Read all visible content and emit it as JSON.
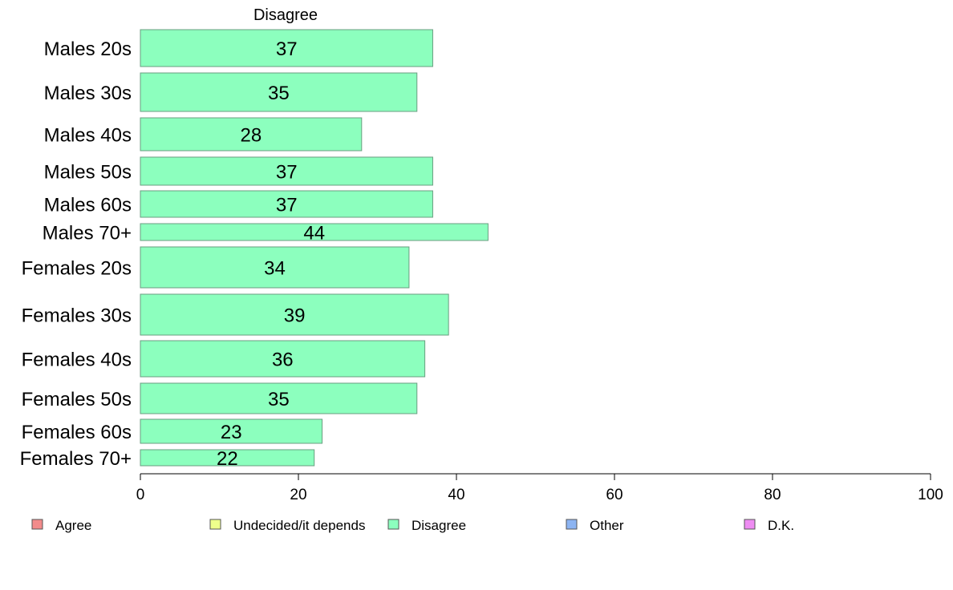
{
  "chart_data": {
    "type": "bar",
    "orientation": "horizontal",
    "title": "Disagree",
    "series_name": "Disagree",
    "categories": [
      "Males 20s",
      "Males 30s",
      "Males 40s",
      "Males 50s",
      "Males 60s",
      "Males 70+",
      "Females 20s",
      "Females 30s",
      "Females 40s",
      "Females 50s",
      "Females 60s",
      "Females 70+"
    ],
    "values": [
      37,
      35,
      28,
      37,
      37,
      44,
      34,
      39,
      36,
      35,
      23,
      22
    ],
    "value_labels": [
      "37",
      "35",
      "28",
      "37",
      "37",
      "44",
      "34",
      "39",
      "36",
      "35",
      "23",
      "22"
    ],
    "xlim": [
      0,
      100
    ],
    "xticks": [
      0,
      20,
      40,
      60,
      80,
      100
    ],
    "xtick_labels": [
      "0",
      "20",
      "40",
      "60",
      "80",
      "100"
    ],
    "grid": false,
    "bar_color": "#8cffbe",
    "legend_position": "bottom",
    "legend": [
      {
        "label": "Agree",
        "color": "#f28b8b"
      },
      {
        "label": "Undecided/it depends",
        "color": "#eeff8c"
      },
      {
        "label": "Disagree",
        "color": "#8cffbe"
      },
      {
        "label": "Other",
        "color": "#8cb4f2"
      },
      {
        "label": "D.K.",
        "color": "#ee8cf2"
      }
    ]
  }
}
